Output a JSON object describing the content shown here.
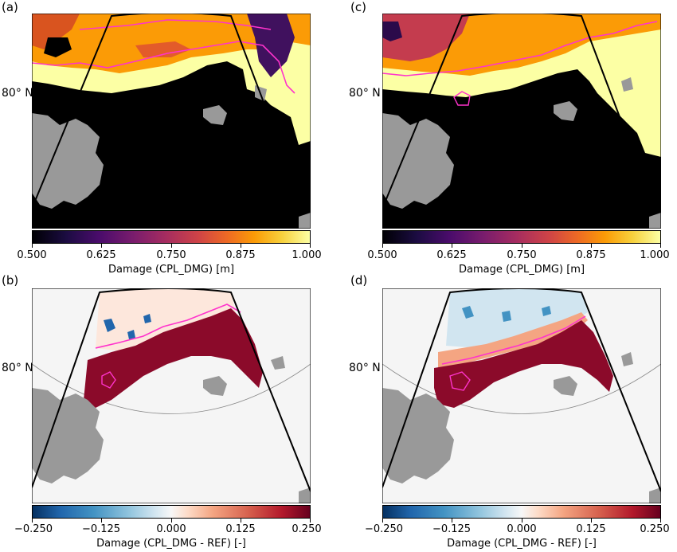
{
  "panels": {
    "a": {
      "label": "(a)",
      "lat_label": "80° N"
    },
    "b": {
      "label": "(b)",
      "lat_label": "80° N"
    },
    "c": {
      "label": "(c)",
      "lat_label": "80° N"
    },
    "d": {
      "label": "(d)",
      "lat_label": "80° N"
    }
  },
  "colorbars": {
    "damage": {
      "title": "Damage (CPL_DMG) [m]",
      "ticks": [
        "0.500",
        "0.625",
        "0.750",
        "0.875",
        "1.000"
      ],
      "range": [
        0.5,
        1.0
      ],
      "colormap": "inferno"
    },
    "difference": {
      "title": "Damage (CPL_DMG - REF) [-]",
      "ticks": [
        "−0.250",
        "−0.125",
        "0.000",
        "0.125",
        "0.250"
      ],
      "range": [
        -0.25,
        0.25
      ],
      "colormap": "RdBu_r"
    }
  },
  "colors": {
    "land": "#999999",
    "ocean_top": "#000000",
    "ocean_bottom": "#f5f5f5",
    "contour": "#ff33cc",
    "domain_outline": "#000000",
    "damage_high": "#fcffa4",
    "damage_mid": "#fb9b06",
    "diff_positive": "#8b0a2a",
    "diff_negative": "#2166ac"
  }
}
